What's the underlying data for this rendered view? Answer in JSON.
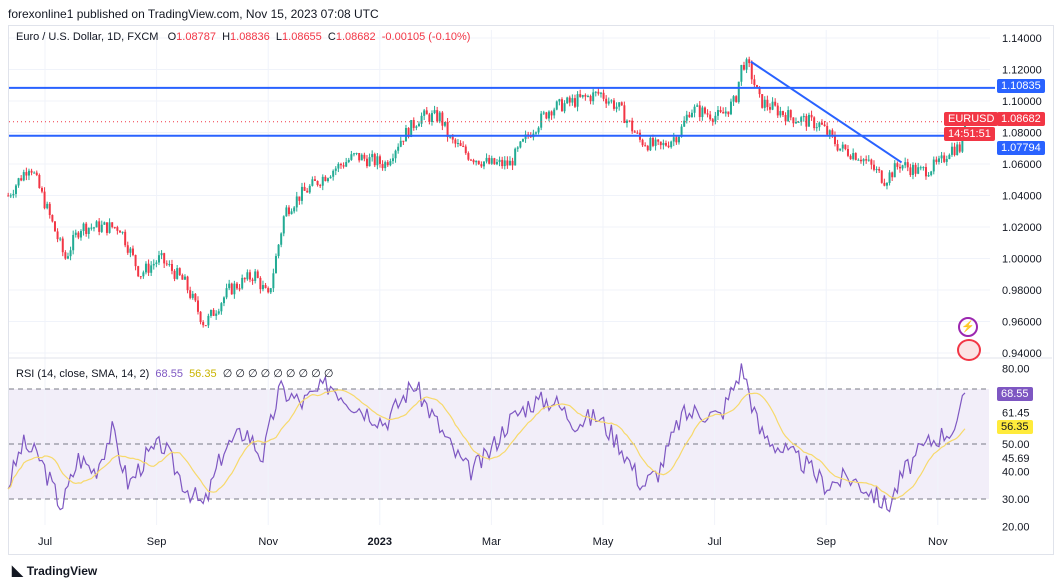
{
  "header": {
    "published": "forexonline1 published on TradingView.com, Nov 15, 2023 07:08 UTC"
  },
  "legend": {
    "symbol": "Euro / U.S. Dollar, 1D, FXCM",
    "o_label": "O",
    "o": "1.08787",
    "h_label": "H",
    "h": "1.08836",
    "l_label": "L",
    "l": "1.08655",
    "c_label": "C",
    "c": "1.08682",
    "change": "-0.00105 (-0.10%)"
  },
  "rsi_legend": {
    "label": "RSI (14, close, SMA, 14, 2)",
    "rsi": "68.55",
    "sma": "56.35",
    "placeholders": "∅ ∅ ∅ ∅ ∅ ∅ ∅ ∅ ∅"
  },
  "tags": {
    "line1": "1.10835",
    "line2": "1.07794",
    "symbol": "EURUSD",
    "price": "1.08682",
    "countdown": "14:51:51",
    "rsi": "68.55",
    "rsi_sma": "56.35"
  },
  "footer": {
    "brand": "TradingView"
  },
  "colors": {
    "up": "#22ab94",
    "down": "#f23645",
    "line": "#2962ff",
    "rsi": "#7e57c2",
    "sma": "#f7d96b"
  },
  "chart_data": {
    "type": "candlestick",
    "price_axis": {
      "ticks": [
        "1.14000",
        "1.12000",
        "1.10000",
        "1.08000",
        "1.06000",
        "1.04000",
        "1.02000",
        "1.00000",
        "0.98000",
        "0.96000",
        "0.94000"
      ],
      "tick_values": [
        1.14,
        1.12,
        1.1,
        1.08,
        1.06,
        1.04,
        1.02,
        1.0,
        0.98,
        0.96,
        0.94
      ],
      "range": [
        0.94,
        1.14
      ]
    },
    "rsi_axis": {
      "ticks": [
        "80.00",
        "61.45",
        "50.00",
        "45.69",
        "40.00",
        "30.00",
        "20.00"
      ],
      "tick_values": [
        80,
        61.45,
        50,
        45.69,
        40,
        30,
        20
      ],
      "range": [
        20,
        80
      ]
    },
    "time_axis": {
      "labels": [
        "Jul",
        "Sep",
        "Nov",
        "2023",
        "Mar",
        "May",
        "Jul",
        "Sep",
        "Nov"
      ],
      "month_offsets": [
        0,
        2,
        4,
        6,
        8,
        10,
        12,
        14,
        16
      ]
    },
    "horizontal_lines": [
      1.10835,
      1.07794
    ],
    "trendline": [
      [
        12.65,
        1.125
      ],
      [
        15.35,
        1.061
      ]
    ],
    "price_keypoints": [
      [
        -0.66,
        1.04
      ],
      [
        -0.27,
        1.06
      ],
      [
        0,
        1.035
      ],
      [
        0.36,
        1.0
      ],
      [
        0.63,
        1.02
      ],
      [
        1.0,
        1.02
      ],
      [
        1.34,
        1.02
      ],
      [
        1.7,
        0.99
      ],
      [
        2.06,
        1.0
      ],
      [
        2.5,
        0.985
      ],
      [
        2.86,
        0.958
      ],
      [
        3.3,
        0.98
      ],
      [
        3.76,
        0.99
      ],
      [
        4.0,
        0.975
      ],
      [
        4.3,
        1.03
      ],
      [
        4.57,
        1.04
      ],
      [
        5.1,
        1.055
      ],
      [
        5.55,
        1.065
      ],
      [
        6.09,
        1.06
      ],
      [
        6.36,
        1.075
      ],
      [
        6.72,
        1.09
      ],
      [
        7.08,
        1.09
      ],
      [
        7.26,
        1.075
      ],
      [
        7.62,
        1.065
      ],
      [
        7.97,
        1.06
      ],
      [
        8.33,
        1.06
      ],
      [
        8.69,
        1.08
      ],
      [
        9.05,
        1.095
      ],
      [
        9.5,
        1.1
      ],
      [
        9.95,
        1.105
      ],
      [
        10.3,
        1.095
      ],
      [
        10.66,
        1.075
      ],
      [
        11.02,
        1.07
      ],
      [
        11.38,
        1.08
      ],
      [
        11.56,
        1.095
      ],
      [
        12.1,
        1.09
      ],
      [
        12.37,
        1.1
      ],
      [
        12.5,
        1.125
      ],
      [
        12.63,
        1.12
      ],
      [
        12.81,
        1.1
      ],
      [
        13.35,
        1.09
      ],
      [
        13.89,
        1.085
      ],
      [
        14.25,
        1.07
      ],
      [
        14.61,
        1.065
      ],
      [
        15.05,
        1.05
      ],
      [
        15.32,
        1.06
      ],
      [
        15.68,
        1.055
      ],
      [
        16.04,
        1.06
      ],
      [
        16.22,
        1.07
      ],
      [
        16.4,
        1.07
      ],
      [
        16.49,
        1.0868
      ]
    ],
    "rsi_keypoints": [
      [
        -0.66,
        35
      ],
      [
        -0.4,
        50
      ],
      [
        -0.1,
        45
      ],
      [
        0.3,
        27
      ],
      [
        0.6,
        45
      ],
      [
        0.9,
        40
      ],
      [
        1.2,
        55
      ],
      [
        1.5,
        35
      ],
      [
        1.8,
        45
      ],
      [
        2.1,
        50
      ],
      [
        2.5,
        35
      ],
      [
        2.85,
        27
      ],
      [
        3.2,
        48
      ],
      [
        3.6,
        55
      ],
      [
        3.9,
        45
      ],
      [
        4.2,
        70
      ],
      [
        4.6,
        65
      ],
      [
        5.1,
        72
      ],
      [
        5.5,
        65
      ],
      [
        6.1,
        58
      ],
      [
        6.6,
        72
      ],
      [
        6.9,
        62
      ],
      [
        7.3,
        48
      ],
      [
        7.6,
        40
      ],
      [
        7.9,
        45
      ],
      [
        8.3,
        58
      ],
      [
        8.7,
        65
      ],
      [
        9.1,
        66
      ],
      [
        9.5,
        58
      ],
      [
        9.9,
        60
      ],
      [
        10.3,
        50
      ],
      [
        10.7,
        35
      ],
      [
        11.0,
        40
      ],
      [
        11.4,
        60
      ],
      [
        11.7,
        62
      ],
      [
        12.1,
        60
      ],
      [
        12.5,
        78
      ],
      [
        12.8,
        55
      ],
      [
        13.2,
        48
      ],
      [
        13.6,
        43
      ],
      [
        14.0,
        35
      ],
      [
        14.4,
        38
      ],
      [
        14.8,
        33
      ],
      [
        15.1,
        27
      ],
      [
        15.4,
        40
      ],
      [
        15.8,
        50
      ],
      [
        16.2,
        55
      ],
      [
        16.35,
        56
      ],
      [
        16.49,
        68.55
      ]
    ]
  }
}
